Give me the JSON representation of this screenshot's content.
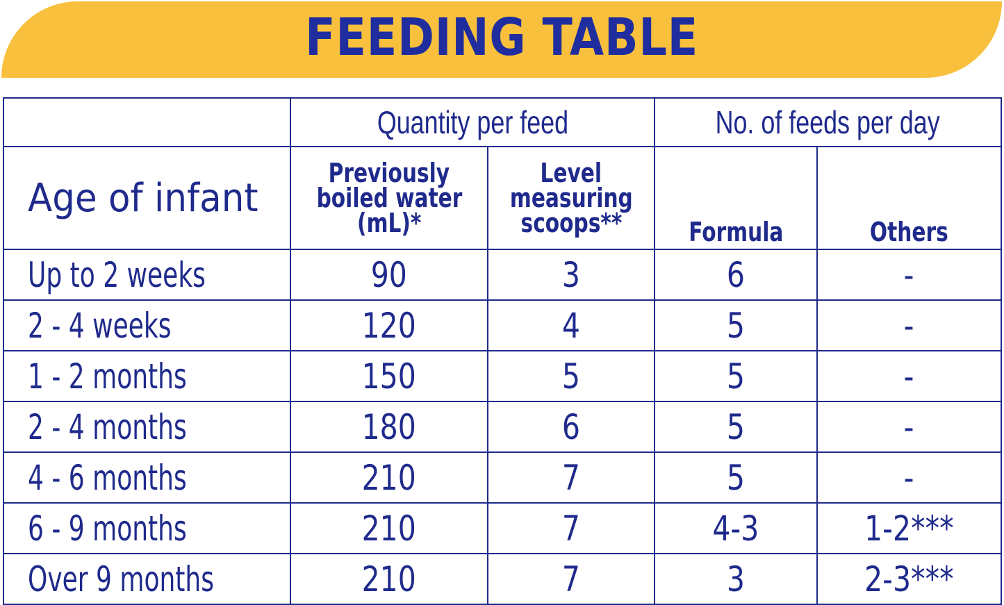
{
  "header": {
    "title": "FEEDING TABLE"
  },
  "table": {
    "group_quantity": "Quantity per feed",
    "group_feeds": "No. of feeds per day",
    "col_age": "Age of infant",
    "col_water": [
      "Previously",
      "boiled water",
      "(mL)*"
    ],
    "col_scoops": [
      "Level",
      "measuring",
      "scoops**"
    ],
    "col_formula": "Formula",
    "col_others": "Others",
    "rows": [
      {
        "age": "Up to 2 weeks",
        "water": "90",
        "scoops": "3",
        "formula": "6",
        "others": "-"
      },
      {
        "age": "2 - 4 weeks",
        "water": "120",
        "scoops": "4",
        "formula": "5",
        "others": "-"
      },
      {
        "age": "1 - 2 months",
        "water": "150",
        "scoops": "5",
        "formula": "5",
        "others": "-"
      },
      {
        "age": "2 - 4 months",
        "water": "180",
        "scoops": "6",
        "formula": "5",
        "others": "-"
      },
      {
        "age": "4 - 6 months",
        "water": "210",
        "scoops": "7",
        "formula": "5",
        "others": "-"
      },
      {
        "age": "6 - 9 months",
        "water": "210",
        "scoops": "7",
        "formula": "4-3",
        "others": "1-2***"
      },
      {
        "age": "Over 9 months",
        "water": "210",
        "scoops": "7",
        "formula": "3",
        "others": "2-3***"
      }
    ]
  },
  "colors": {
    "banner": "#f8c03c",
    "text": "#1f2a8c"
  }
}
